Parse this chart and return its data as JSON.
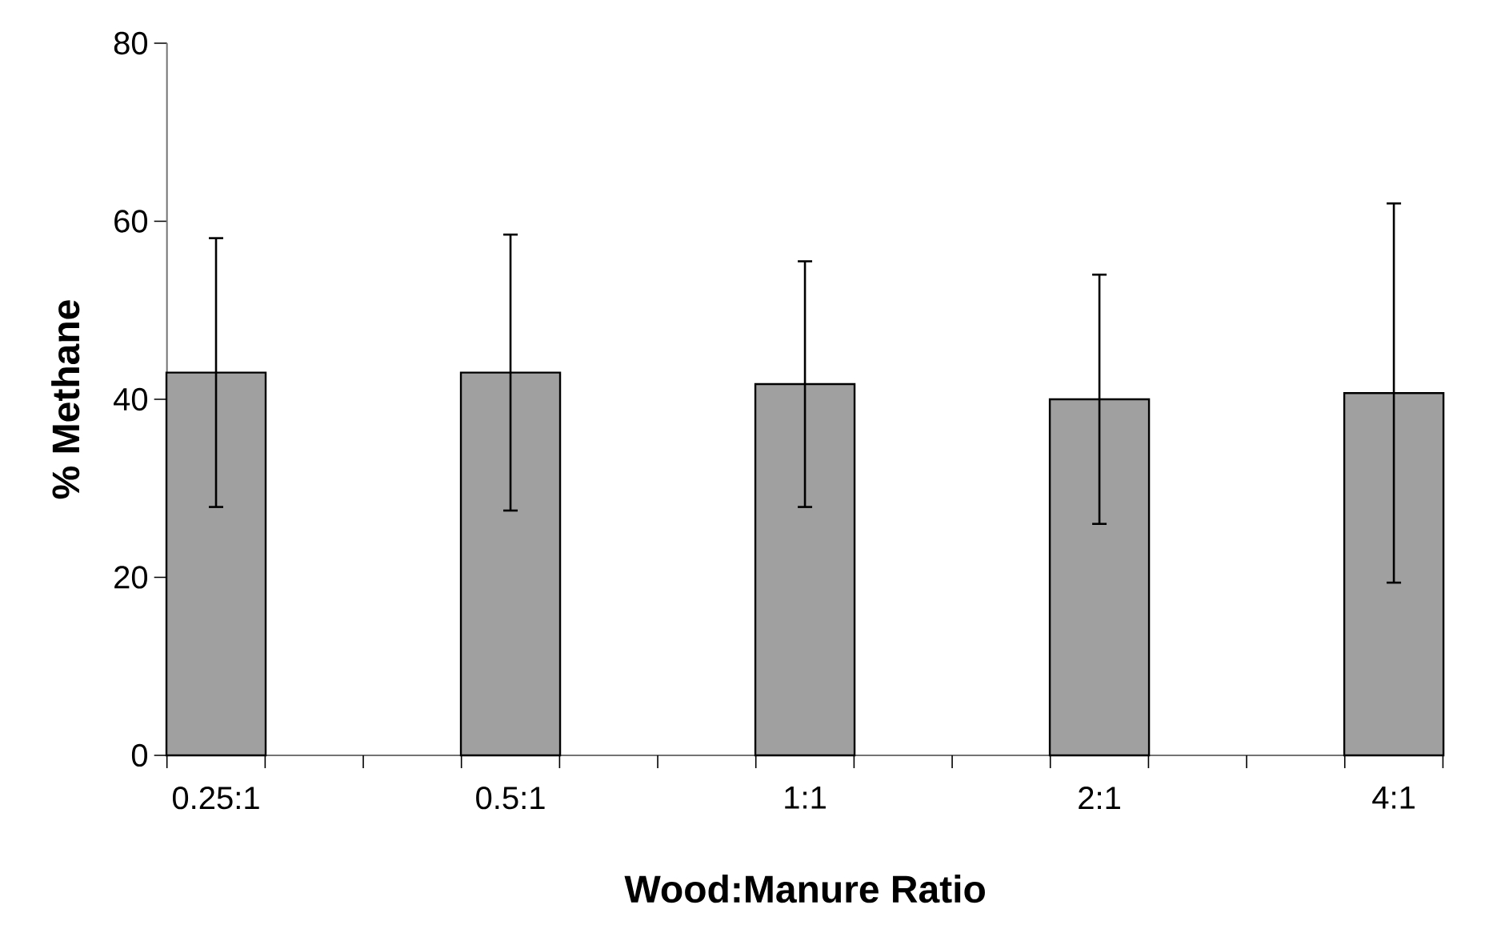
{
  "chart_data": {
    "type": "bar",
    "xlabel": "Wood:Manure Ratio",
    "ylabel": "% Methane",
    "categories": [
      "0.25:1",
      "0.5:1",
      "1:1",
      "2:1",
      "4:1"
    ],
    "values": [
      43.0,
      43.0,
      41.7,
      40.0,
      40.7
    ],
    "errors": [
      15.1,
      15.5,
      13.8,
      14.0,
      21.3
    ],
    "color": "#a0a0a0",
    "ylim": [
      0,
      80
    ],
    "yticks": [
      0,
      20,
      40,
      60,
      80
    ],
    "grid": false
  }
}
